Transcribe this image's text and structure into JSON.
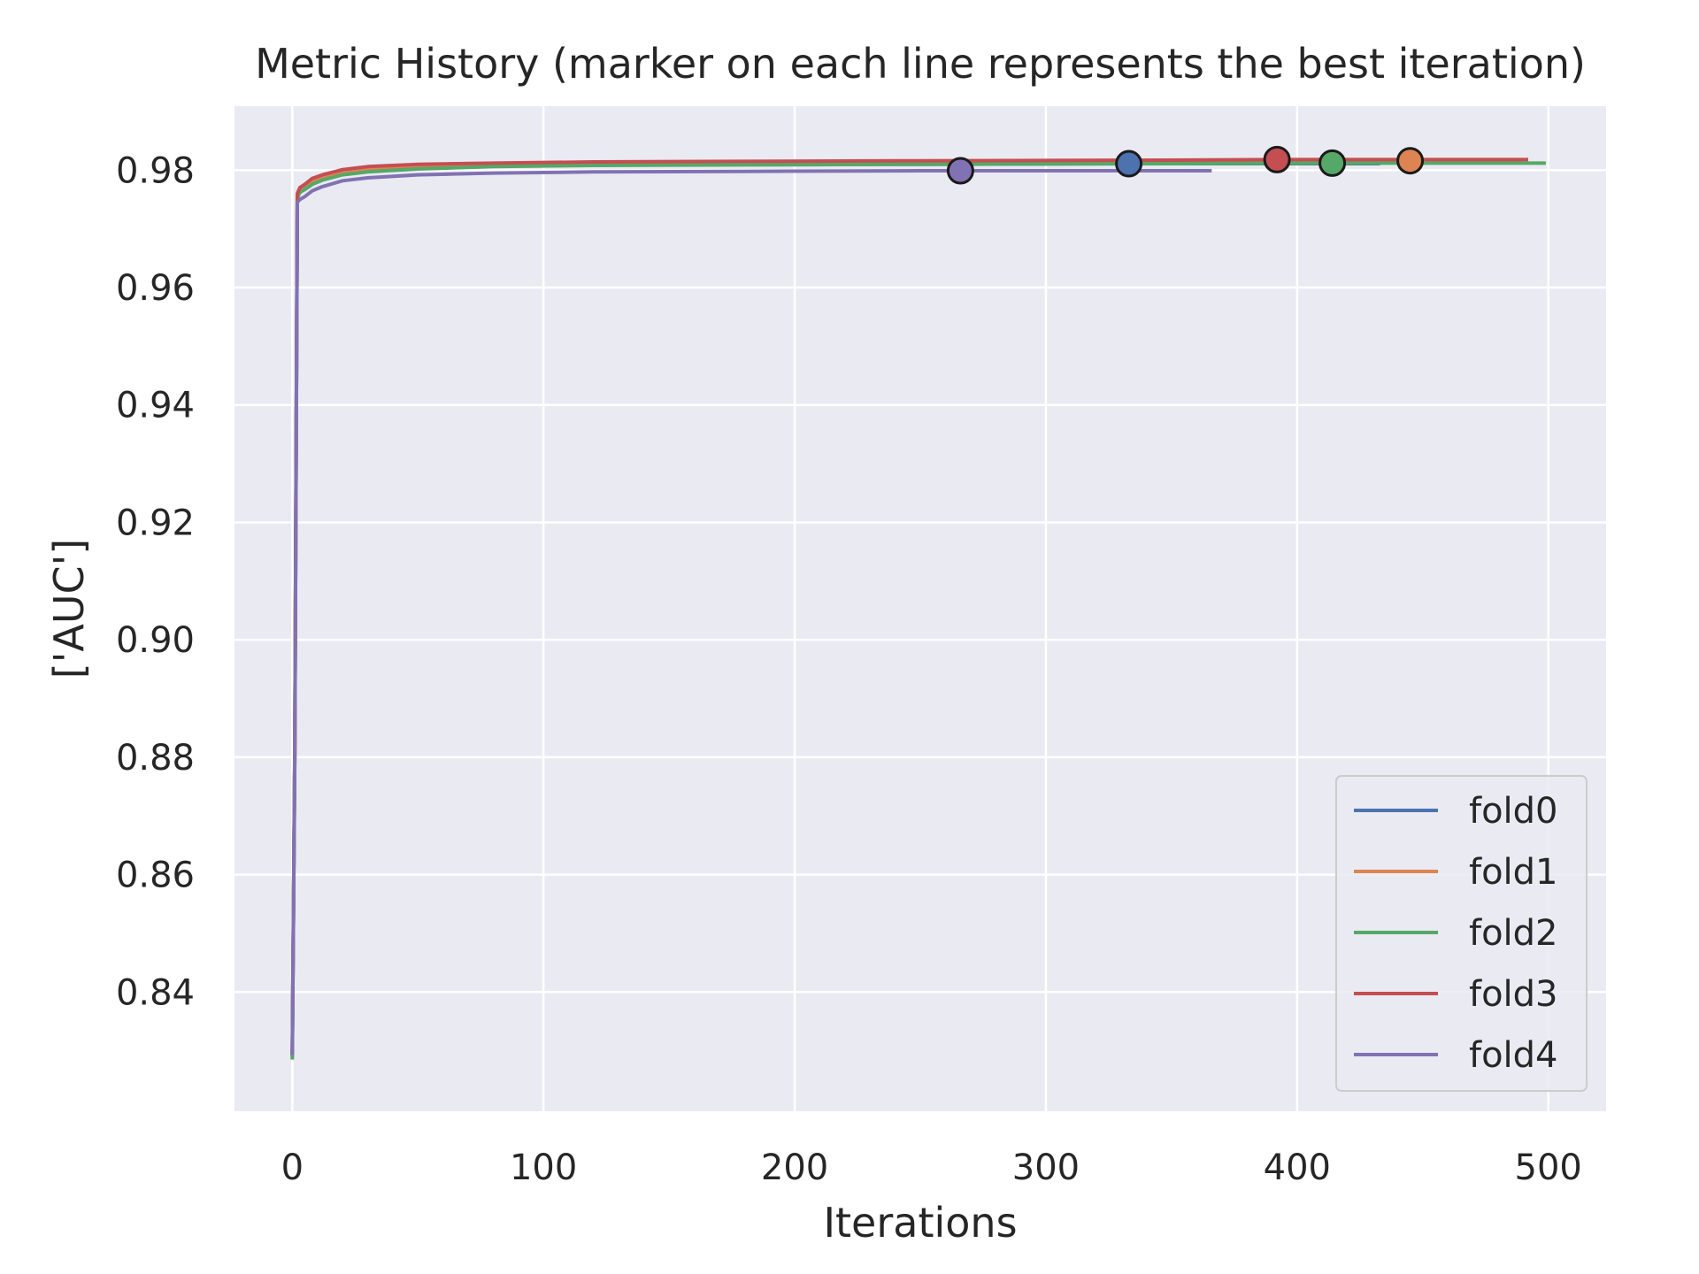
{
  "chart_data": {
    "type": "line",
    "title": "Metric History (marker on each line represents the best iteration)",
    "xlabel": "Iterations",
    "ylabel": "['AUC']",
    "xlim": [
      -23,
      523
    ],
    "ylim": [
      0.8197,
      0.9909
    ],
    "xticks": [
      0,
      100,
      200,
      300,
      400,
      500
    ],
    "yticks": [
      0.84,
      0.86,
      0.88,
      0.9,
      0.92,
      0.94,
      0.96,
      0.98
    ],
    "xtick_labels": [
      "0",
      "100",
      "200",
      "300",
      "400",
      "500"
    ],
    "ytick_labels": [
      "0.84",
      "0.86",
      "0.88",
      "0.90",
      "0.92",
      "0.94",
      "0.96",
      "0.98"
    ],
    "grid": true,
    "background": "#eaeaf2",
    "legend_position": "lower-right",
    "series": [
      {
        "name": "fold0",
        "color": "#4c72b0",
        "x": [
          0,
          1,
          2,
          3,
          5,
          8,
          12,
          20,
          30,
          50,
          80,
          120,
          180,
          250,
          333,
          380,
          433
        ],
        "y": [
          0.829,
          0.88,
          0.9755,
          0.9765,
          0.977,
          0.978,
          0.9785,
          0.9795,
          0.98,
          0.9805,
          0.981,
          0.981,
          0.981,
          0.981,
          0.9811,
          0.9811,
          0.9811
        ],
        "best": {
          "x": 333,
          "y": 0.9811
        }
      },
      {
        "name": "fold1",
        "color": "#dd8452",
        "x": [
          0,
          1,
          2,
          3,
          5,
          8,
          12,
          20,
          30,
          50,
          80,
          120,
          180,
          250,
          350,
          445,
          490
        ],
        "y": [
          0.829,
          0.88,
          0.9757,
          0.9767,
          0.9772,
          0.9782,
          0.9788,
          0.9797,
          0.9803,
          0.9808,
          0.9811,
          0.9812,
          0.9813,
          0.9814,
          0.9815,
          0.9816,
          0.9816
        ],
        "best": {
          "x": 445,
          "y": 0.9816
        }
      },
      {
        "name": "fold2",
        "color": "#55a868",
        "x": [
          0,
          1,
          2,
          3,
          5,
          8,
          12,
          20,
          30,
          50,
          80,
          120,
          180,
          250,
          350,
          414,
          499
        ],
        "y": [
          0.8285,
          0.879,
          0.9752,
          0.9762,
          0.9767,
          0.9776,
          0.9783,
          0.9792,
          0.9797,
          0.9802,
          0.9806,
          0.9808,
          0.9809,
          0.981,
          0.9811,
          0.9812,
          0.9812
        ],
        "best": {
          "x": 414,
          "y": 0.9812
        }
      },
      {
        "name": "fold3",
        "color": "#c44e52",
        "x": [
          0,
          1,
          2,
          3,
          5,
          8,
          12,
          20,
          30,
          50,
          80,
          120,
          180,
          250,
          350,
          392,
          492
        ],
        "y": [
          0.8295,
          0.881,
          0.976,
          0.977,
          0.9776,
          0.9786,
          0.9792,
          0.9801,
          0.9806,
          0.981,
          0.9812,
          0.9814,
          0.9815,
          0.9816,
          0.9817,
          0.9818,
          0.9818
        ],
        "best": {
          "x": 392,
          "y": 0.9818
        }
      },
      {
        "name": "fold4",
        "color": "#8172b3",
        "x": [
          0,
          1,
          2,
          3,
          5,
          8,
          12,
          20,
          30,
          50,
          80,
          120,
          180,
          250,
          266,
          300,
          366
        ],
        "y": [
          0.8293,
          0.88,
          0.9745,
          0.975,
          0.9755,
          0.9765,
          0.9772,
          0.9782,
          0.9787,
          0.9792,
          0.9795,
          0.9797,
          0.9798,
          0.9799,
          0.9799,
          0.9799,
          0.9799
        ],
        "best": {
          "x": 266,
          "y": 0.9799
        }
      }
    ]
  }
}
